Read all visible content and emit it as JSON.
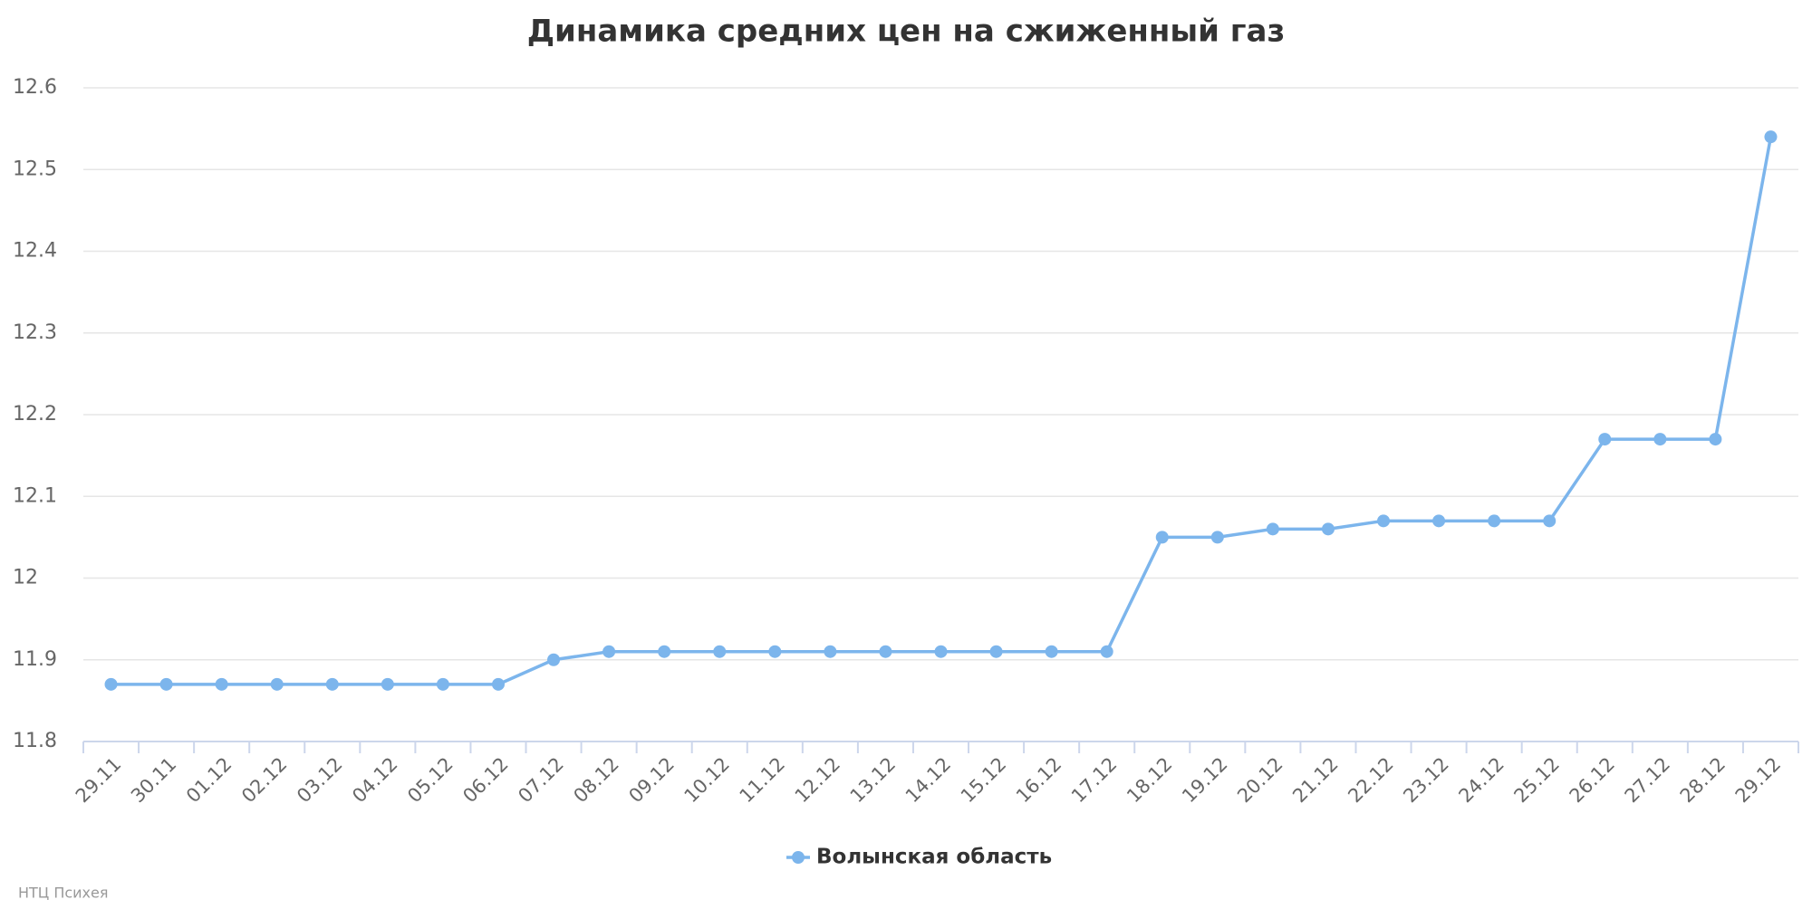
{
  "chart_data": {
    "type": "line",
    "title": "Динамика средних цен на сжиженный газ",
    "categories": [
      "29.11",
      "30.11",
      "01.12",
      "02.12",
      "03.12",
      "04.12",
      "05.12",
      "06.12",
      "07.12",
      "08.12",
      "09.12",
      "10.12",
      "11.12",
      "12.12",
      "13.12",
      "14.12",
      "15.12",
      "16.12",
      "17.12",
      "18.12",
      "19.12",
      "20.12",
      "21.12",
      "22.12",
      "23.12",
      "24.12",
      "25.12",
      "26.12",
      "27.12",
      "28.12",
      "29.12"
    ],
    "series": [
      {
        "name": "Волынская область",
        "color": "#7cb5ec",
        "values": [
          11.87,
          11.87,
          11.87,
          11.87,
          11.87,
          11.87,
          11.87,
          11.87,
          11.9,
          11.91,
          11.91,
          11.91,
          11.91,
          11.91,
          11.91,
          11.91,
          11.91,
          11.91,
          11.91,
          12.05,
          12.05,
          12.06,
          12.06,
          12.07,
          12.07,
          12.07,
          12.07,
          12.17,
          12.17,
          12.17,
          12.54
        ]
      }
    ],
    "ylim": [
      11.8,
      12.6
    ],
    "yticks": [
      11.8,
      11.9,
      12,
      12.1,
      12.2,
      12.3,
      12.4,
      12.5,
      12.6
    ],
    "grid": true,
    "credits": "НТЦ Психея"
  }
}
